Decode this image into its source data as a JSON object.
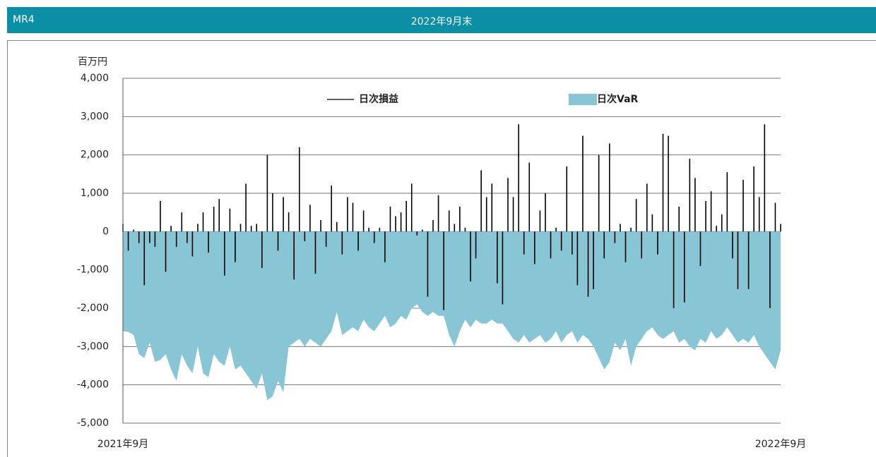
{
  "header": {
    "id": "MR4",
    "title": "2022年9月末"
  },
  "chart_data": {
    "type": "bar",
    "y_label": "百万円",
    "categories": [
      "2021年9月",
      null,
      null,
      null,
      null,
      null,
      null,
      null,
      null,
      null,
      null,
      null,
      null,
      null,
      null,
      null,
      null,
      null,
      null,
      null,
      null,
      null,
      null,
      null,
      null,
      null,
      null,
      null,
      null,
      null,
      null,
      null,
      null,
      null,
      null,
      null,
      null,
      null,
      null,
      null,
      null,
      null,
      null,
      null,
      null,
      null,
      null,
      null,
      null,
      null,
      null,
      null,
      null,
      null,
      null,
      null,
      null,
      null,
      null,
      null,
      null,
      null,
      null,
      null,
      null,
      null,
      null,
      null,
      null,
      null,
      null,
      null,
      null,
      null,
      null,
      null,
      null,
      null,
      null,
      null,
      null,
      null,
      null,
      null,
      null,
      null,
      null,
      null,
      null,
      null,
      null,
      null,
      null,
      null,
      null,
      null,
      null,
      null,
      null,
      null,
      null,
      null,
      null,
      null,
      null,
      null,
      null,
      null,
      null,
      null,
      null,
      null,
      null,
      null,
      null,
      null,
      null,
      null,
      null,
      null,
      null,
      null,
      null,
      "2022年9月"
    ],
    "series": [
      {
        "name": "日次損益",
        "type": "bar",
        "color": "#000000",
        "values": [
          200,
          -500,
          50,
          -300,
          -1400,
          -300,
          -400,
          800,
          -1050,
          150,
          -400,
          500,
          -300,
          -650,
          200,
          500,
          -550,
          650,
          850,
          -1150,
          600,
          -800,
          200,
          1250,
          150,
          200,
          -950,
          2000,
          1000,
          -500,
          900,
          500,
          -1250,
          2200,
          -250,
          700,
          -1100,
          300,
          -400,
          1200,
          250,
          -600,
          900,
          750,
          -500,
          550,
          100,
          -300,
          100,
          -800,
          650,
          400,
          500,
          800,
          1250,
          -100,
          50,
          -1700,
          300,
          950,
          -2050,
          550,
          200,
          650,
          100,
          -1300,
          -700,
          1600,
          900,
          1250,
          -1350,
          -1900,
          1400,
          900,
          2800,
          -600,
          1800,
          -850,
          550,
          1000,
          -700,
          100,
          -500,
          1700,
          -600,
          -1400,
          2500,
          -1700,
          -1500,
          2000,
          -700,
          2300,
          -300,
          200,
          -800,
          100,
          850,
          -700,
          1250,
          450,
          -600,
          2550,
          2500,
          -2000,
          650,
          -1850,
          1900,
          1400,
          -900,
          800,
          1050,
          150,
          450,
          1550,
          -700,
          -1500,
          1350,
          -1500,
          1700,
          900,
          2800,
          -2000,
          750,
          200
        ]
      },
      {
        "name": "日次VaR",
        "type": "area",
        "color": "#88c6d6",
        "values": [
          -2600,
          -2620,
          -2700,
          -3200,
          -3300,
          -2900,
          -3400,
          -3350,
          -3200,
          -3600,
          -3900,
          -3200,
          -3500,
          -3700,
          -3000,
          -3700,
          -3800,
          -3200,
          -3400,
          -3500,
          -3000,
          -3600,
          -3500,
          -3700,
          -3900,
          -4100,
          -3700,
          -4400,
          -4300,
          -3900,
          -4200,
          -3000,
          -2900,
          -2800,
          -3000,
          -2800,
          -2900,
          -3000,
          -2800,
          -2600,
          -2100,
          -2700,
          -2600,
          -2500,
          -2600,
          -2300,
          -2500,
          -2600,
          -2400,
          -2200,
          -2500,
          -2400,
          -2200,
          -2300,
          -2000,
          -1900,
          -2100,
          -2200,
          -2100,
          -2200,
          -2200,
          -2700,
          -3000,
          -2600,
          -2300,
          -2500,
          -2300,
          -2400,
          -2400,
          -2300,
          -2400,
          -2400,
          -2600,
          -2800,
          -2900,
          -2700,
          -2900,
          -2800,
          -2700,
          -2900,
          -2800,
          -2600,
          -2900,
          -2700,
          -2600,
          -2900,
          -2700,
          -2800,
          -3000,
          -3300,
          -3600,
          -3400,
          -2900,
          -3100,
          -2800,
          -3500,
          -3000,
          -2800,
          -2600,
          -2500,
          -2700,
          -2800,
          -2700,
          -2600,
          -2900,
          -2800,
          -3000,
          -3100,
          -2800,
          -2900,
          -2600,
          -2800,
          -2700,
          -2500,
          -2700,
          -2900,
          -2800,
          -2900,
          -2700,
          -3000,
          -3200,
          -3400,
          -3600,
          -3100
        ]
      }
    ],
    "ylim": [
      -5000,
      4000
    ],
    "yticks": [
      {
        "value": -5000,
        "label": "-5,000"
      },
      {
        "value": -4000,
        "label": "-4,000"
      },
      {
        "value": -3000,
        "label": "-3,000"
      },
      {
        "value": -2000,
        "label": "-2,000"
      },
      {
        "value": -1000,
        "label": "-1,000"
      },
      0,
      {
        "value": 1000,
        "label": "1,000"
      },
      {
        "value": 2000,
        "label": "2,000"
      },
      {
        "value": 3000,
        "label": "3,000"
      },
      {
        "value": 4000,
        "label": "4,000"
      }
    ],
    "grid": true
  }
}
